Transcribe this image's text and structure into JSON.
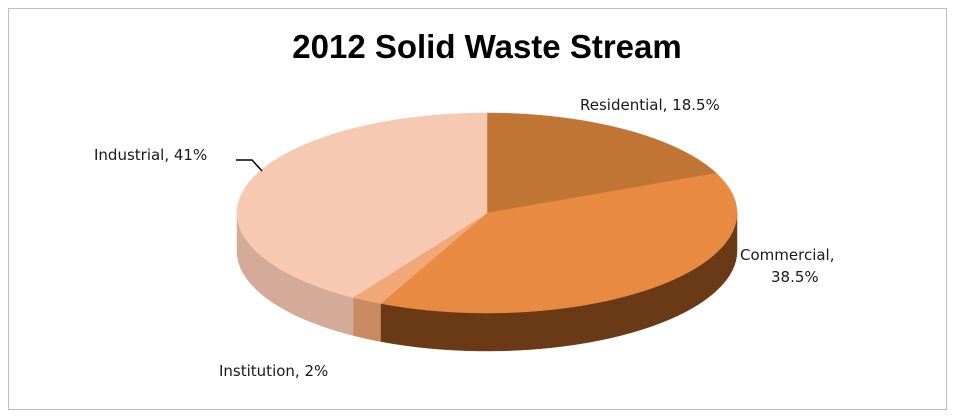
{
  "chart_data": {
    "type": "pie",
    "title": "2012 Solid Waste Stream",
    "slices": [
      {
        "label": "Residential",
        "value": 18.5,
        "text": "Residential, 18.5%",
        "color": "#c07535",
        "side": "#8a4a1c"
      },
      {
        "label": "Commercial",
        "value": 38.5,
        "text_lines": [
          "Commercial,",
          "38.5%"
        ],
        "color": "#e88a42",
        "side": "#6a3a17"
      },
      {
        "label": "Institution",
        "value": 2,
        "text": "Institution, 2%",
        "color": "#f0a878",
        "side": "#c98961"
      },
      {
        "label": "Industrial",
        "value": 41,
        "text": "Industrial, 41%",
        "color": "#f7c8b2",
        "side": "#d4ab98"
      }
    ],
    "legend": "none",
    "style": "3d-pie"
  }
}
